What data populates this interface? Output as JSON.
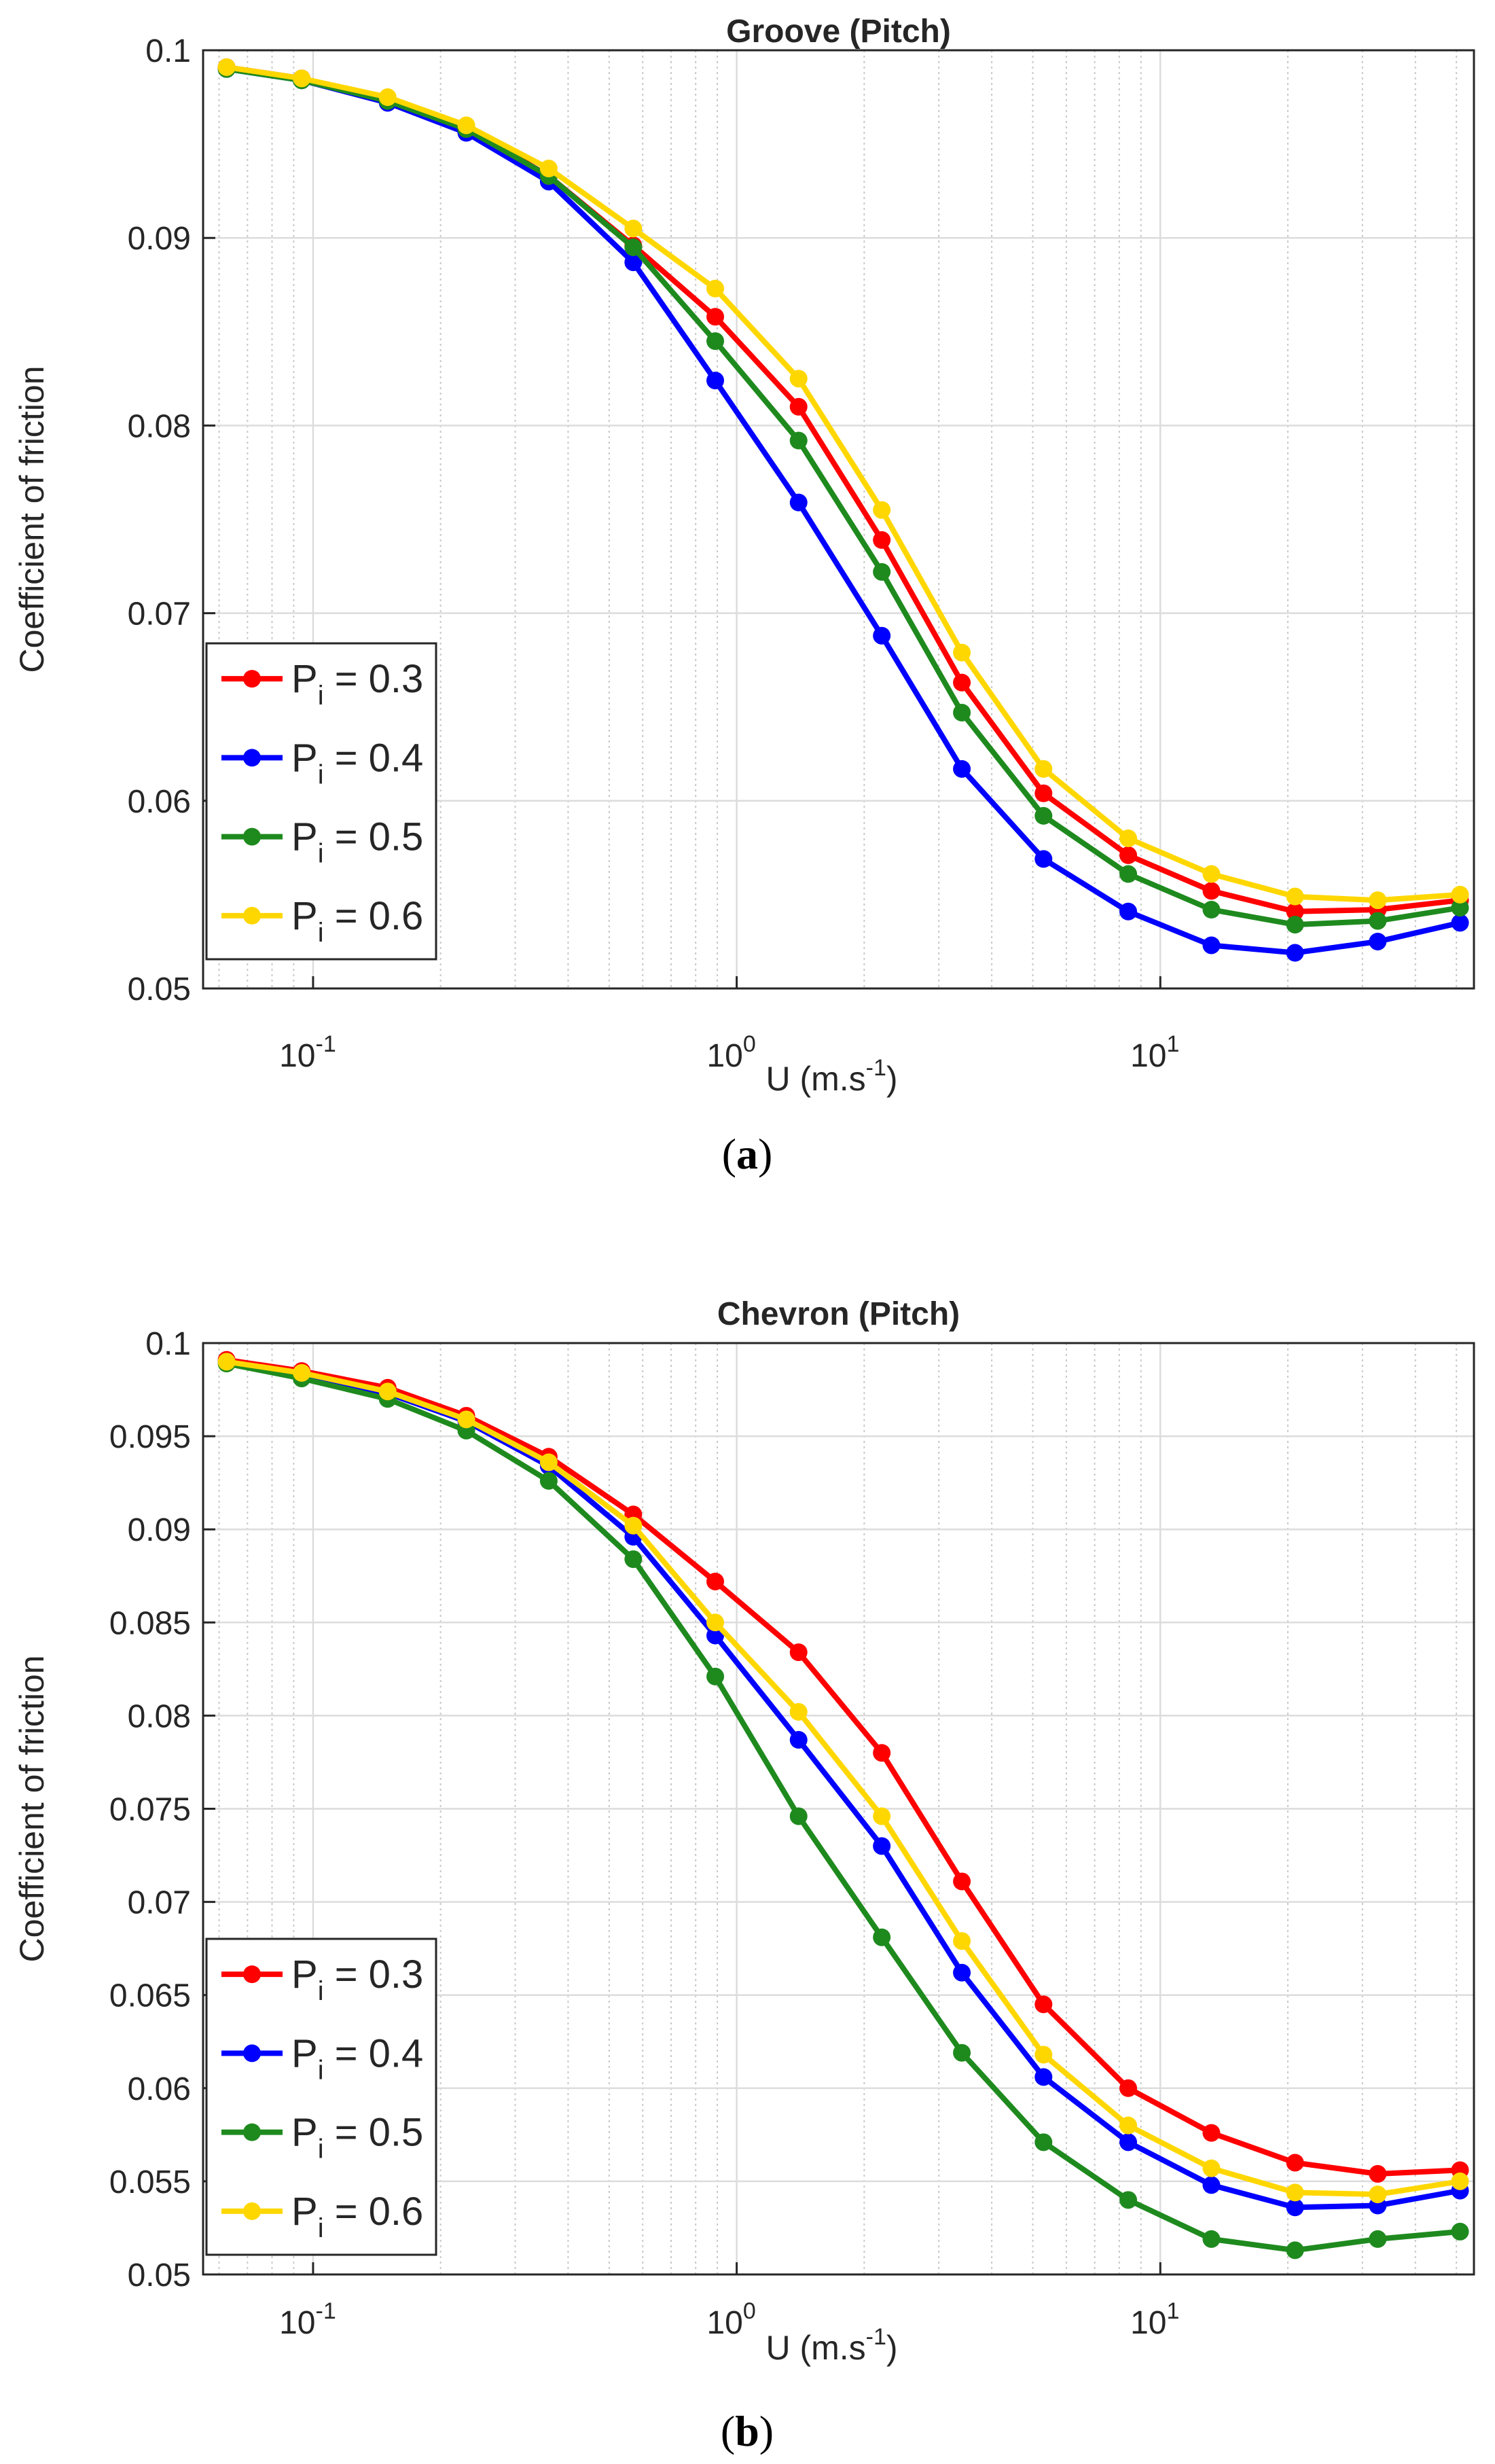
{
  "chart_data": [
    {
      "type": "line",
      "title": "Groove (Pitch)",
      "xlabel_base": "U (m.s",
      "xlabel_exp": "-1",
      "xlabel_close": ")",
      "ylabel": "Coefficient of friction",
      "xscale": "log",
      "xlim": [
        0.055,
        55
      ],
      "ylim": [
        0.05,
        0.1
      ],
      "grid": true,
      "x_ticks": [
        {
          "value": 0.1,
          "base": "10",
          "exp": "-1"
        },
        {
          "value": 1,
          "base": "10",
          "exp": "0"
        },
        {
          "value": 10,
          "base": "10",
          "exp": "1"
        }
      ],
      "y_ticks": [
        {
          "value": 0.05,
          "label": "0.05"
        },
        {
          "value": 0.06,
          "label": "0.06"
        },
        {
          "value": 0.07,
          "label": "0.07"
        },
        {
          "value": 0.08,
          "label": "0.08"
        },
        {
          "value": 0.09,
          "label": "0.09"
        },
        {
          "value": 0.1,
          "label": "0.1"
        }
      ],
      "legend_position": "bottom-left",
      "caption": "a",
      "x": [
        0.0625,
        0.094,
        0.15,
        0.23,
        0.36,
        0.57,
        0.89,
        1.4,
        2.2,
        3.4,
        5.3,
        8.4,
        13.2,
        20.8,
        32.6,
        51
      ],
      "series": [
        {
          "name_base": "P",
          "name_sub": "i",
          "name_rest": " = 0.3",
          "color": "#ff0000",
          "values": [
            0.0991,
            0.0985,
            0.0974,
            0.0959,
            0.0933,
            0.0896,
            0.0858,
            0.081,
            0.0739,
            0.0663,
            0.0604,
            0.0571,
            0.0552,
            0.0541,
            0.0542,
            0.0547
          ]
        },
        {
          "name_base": "P",
          "name_sub": "i",
          "name_rest": " = 0.4",
          "color": "#0000ff",
          "values": [
            0.099,
            0.0984,
            0.0972,
            0.0956,
            0.093,
            0.0887,
            0.0824,
            0.0759,
            0.0688,
            0.0617,
            0.0569,
            0.0541,
            0.0523,
            0.0519,
            0.0525,
            0.0535
          ]
        },
        {
          "name_base": "P",
          "name_sub": "i",
          "name_rest": " = 0.5",
          "color": "#1e8a1e",
          "values": [
            0.099,
            0.0984,
            0.0973,
            0.0958,
            0.0933,
            0.0895,
            0.0845,
            0.0792,
            0.0722,
            0.0647,
            0.0592,
            0.0561,
            0.0542,
            0.0534,
            0.0536,
            0.0543
          ]
        },
        {
          "name_base": "P",
          "name_sub": "i",
          "name_rest": " = 0.6",
          "color": "#ffd700",
          "values": [
            0.0991,
            0.0985,
            0.0975,
            0.096,
            0.0937,
            0.0905,
            0.0873,
            0.0825,
            0.0755,
            0.0679,
            0.0617,
            0.058,
            0.0561,
            0.0549,
            0.0547,
            0.055
          ]
        }
      ]
    },
    {
      "type": "line",
      "title": "Chevron (Pitch)",
      "xlabel_base": "U (m.s",
      "xlabel_exp": "-1",
      "xlabel_close": ")",
      "ylabel": "Coefficient of friction",
      "xscale": "log",
      "xlim": [
        0.055,
        55
      ],
      "ylim": [
        0.05,
        0.1
      ],
      "grid": true,
      "x_ticks": [
        {
          "value": 0.1,
          "base": "10",
          "exp": "-1"
        },
        {
          "value": 1,
          "base": "10",
          "exp": "0"
        },
        {
          "value": 10,
          "base": "10",
          "exp": "1"
        }
      ],
      "y_ticks": [
        {
          "value": 0.05,
          "label": "0.05"
        },
        {
          "value": 0.055,
          "label": "0.055"
        },
        {
          "value": 0.06,
          "label": "0.06"
        },
        {
          "value": 0.065,
          "label": "0.065"
        },
        {
          "value": 0.07,
          "label": "0.07"
        },
        {
          "value": 0.075,
          "label": "0.075"
        },
        {
          "value": 0.08,
          "label": "0.08"
        },
        {
          "value": 0.085,
          "label": "0.085"
        },
        {
          "value": 0.09,
          "label": "0.09"
        },
        {
          "value": 0.095,
          "label": "0.095"
        },
        {
          "value": 0.1,
          "label": "0.1"
        }
      ],
      "legend_position": "bottom-left",
      "caption": "b",
      "x": [
        0.0625,
        0.094,
        0.15,
        0.23,
        0.36,
        0.57,
        0.89,
        1.4,
        2.2,
        3.4,
        5.3,
        8.4,
        13.2,
        20.8,
        32.6,
        51
      ],
      "series": [
        {
          "name_base": "P",
          "name_sub": "i",
          "name_rest": " = 0.3",
          "color": "#ff0000",
          "values": [
            0.0991,
            0.0985,
            0.0976,
            0.0961,
            0.0939,
            0.0908,
            0.0872,
            0.0834,
            0.078,
            0.0711,
            0.0645,
            0.06,
            0.0576,
            0.056,
            0.0554,
            0.0556
          ]
        },
        {
          "name_base": "P",
          "name_sub": "i",
          "name_rest": " = 0.4",
          "color": "#0000ff",
          "values": [
            0.099,
            0.0983,
            0.0973,
            0.0958,
            0.0934,
            0.0896,
            0.0843,
            0.0787,
            0.073,
            0.0662,
            0.0606,
            0.0571,
            0.0548,
            0.0536,
            0.0537,
            0.0545
          ]
        },
        {
          "name_base": "P",
          "name_sub": "i",
          "name_rest": " = 0.5",
          "color": "#1e8a1e",
          "values": [
            0.0989,
            0.0981,
            0.097,
            0.0953,
            0.0926,
            0.0884,
            0.0821,
            0.0746,
            0.0681,
            0.0619,
            0.0571,
            0.054,
            0.0519,
            0.0513,
            0.0519,
            0.0523
          ]
        },
        {
          "name_base": "P",
          "name_sub": "i",
          "name_rest": " = 0.6",
          "color": "#ffd700",
          "values": [
            0.099,
            0.0984,
            0.0974,
            0.0959,
            0.0936,
            0.0902,
            0.085,
            0.0802,
            0.0746,
            0.0679,
            0.0618,
            0.058,
            0.0557,
            0.0544,
            0.0543,
            0.055
          ]
        }
      ]
    }
  ]
}
